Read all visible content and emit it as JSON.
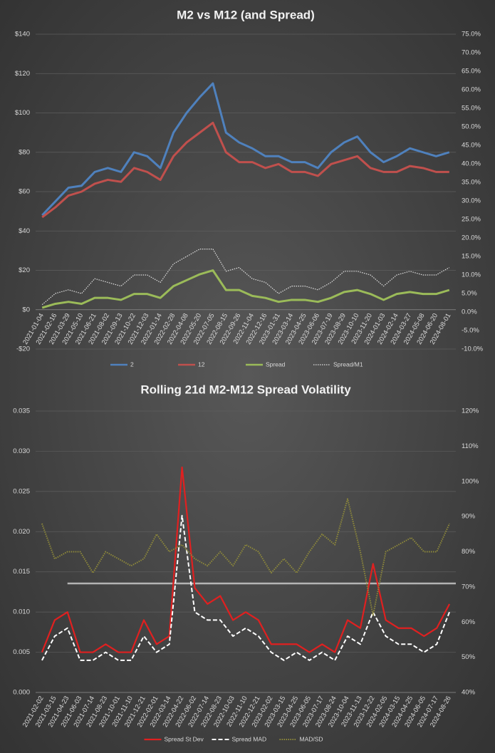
{
  "chart_data": [
    {
      "type": "line",
      "title": "M2 vs M12 (and Spread)",
      "grid": true,
      "categories": [
        "2021-01-04",
        "2021-02-16",
        "2021-03-29",
        "2021-05-10",
        "2021-06-21",
        "2021-08-02",
        "2021-09-13",
        "2021-10-22",
        "2021-12-03",
        "2022-01-14",
        "2022-02-28",
        "2022-04-08",
        "2022-05-20",
        "2022-07-05",
        "2022-08-15",
        "2022-09-26",
        "2022-11-04",
        "2022-12-16",
        "2023-01-31",
        "2023-03-14",
        "2023-04-25",
        "2023-06-06",
        "2023-07-19",
        "2023-08-29",
        "2023-10-10",
        "2023-11-20",
        "2024-01-03",
        "2024-02-14",
        "2024-03-27",
        "2024-05-08",
        "2024-06-20",
        "2024-08-01"
      ],
      "ylim": [
        -20,
        140
      ],
      "yticks": [
        {
          "value": -20,
          "label": "-$20"
        },
        {
          "value": 0,
          "label": "$0"
        },
        {
          "value": 20,
          "label": "$20"
        },
        {
          "value": 40,
          "label": "$40"
        },
        {
          "value": 60,
          "label": "$60"
        },
        {
          "value": 80,
          "label": "$80"
        },
        {
          "value": 100,
          "label": "$100"
        },
        {
          "value": 120,
          "label": "$120"
        },
        {
          "value": 140,
          "label": "$140"
        }
      ],
      "y2lim": [
        -10,
        75
      ],
      "y2ticks": [
        {
          "value": -10,
          "label": "-10.0%"
        },
        {
          "value": -5,
          "label": "-5.0%"
        },
        {
          "value": 0,
          "label": "0.0%"
        },
        {
          "value": 5,
          "label": "5.0%"
        },
        {
          "value": 10,
          "label": "10.0%"
        },
        {
          "value": 15,
          "label": "15.0%"
        },
        {
          "value": 20,
          "label": "20.0%"
        },
        {
          "value": 25,
          "label": "25.0%"
        },
        {
          "value": 30,
          "label": "30.0%"
        },
        {
          "value": 35,
          "label": "35.0%"
        },
        {
          "value": 40,
          "label": "40.0%"
        },
        {
          "value": 45,
          "label": "45.0%"
        },
        {
          "value": 50,
          "label": "50.0%"
        },
        {
          "value": 55,
          "label": "55.0%"
        },
        {
          "value": 60,
          "label": "60.0%"
        },
        {
          "value": 65,
          "label": "65.0%"
        },
        {
          "value": 70,
          "label": "70.0%"
        },
        {
          "value": 75,
          "label": "75.0%"
        }
      ],
      "series": [
        {
          "name": "2",
          "color": "#4f81bd",
          "width": 3,
          "values": [
            48,
            55,
            62,
            63,
            70,
            72,
            70,
            80,
            78,
            72,
            90,
            100,
            108,
            115,
            90,
            85,
            82,
            78,
            78,
            75,
            75,
            72,
            80,
            85,
            88,
            80,
            75,
            78,
            82,
            80,
            78,
            80
          ]
        },
        {
          "name": "12",
          "color": "#c0504d",
          "width": 3,
          "values": [
            47,
            52,
            58,
            60,
            64,
            66,
            65,
            72,
            70,
            66,
            78,
            85,
            90,
            95,
            80,
            75,
            75,
            72,
            74,
            70,
            70,
            68,
            74,
            76,
            78,
            72,
            70,
            70,
            73,
            72,
            70,
            70
          ]
        },
        {
          "name": "Spread",
          "color": "#9bbb59",
          "width": 3,
          "values": [
            1,
            3,
            4,
            3,
            6,
            6,
            5,
            8,
            8,
            6,
            12,
            15,
            18,
            20,
            10,
            10,
            7,
            6,
            4,
            5,
            5,
            4,
            6,
            9,
            10,
            8,
            5,
            8,
            9,
            8,
            8,
            10
          ]
        },
        {
          "name": "Spread/M1",
          "color": "#e0e0e0",
          "width": 1.2,
          "dash": "dotted",
          "axis": "y2",
          "values": [
            2,
            5,
            6,
            5,
            9,
            8,
            7,
            10,
            10,
            8,
            13,
            15,
            17,
            17,
            11,
            12,
            9,
            8,
            5,
            7,
            7,
            6,
            8,
            11,
            11,
            10,
            7,
            10,
            11,
            10,
            10,
            12
          ]
        }
      ]
    },
    {
      "type": "line",
      "title": "Rolling 21d M2-M12 Spread Volatility",
      "grid": true,
      "categories": [
        "2021-02-02",
        "2021-03-15",
        "2021-04-23",
        "2021-06-03",
        "2021-07-14",
        "2021-08-23",
        "2021-10-01",
        "2021-11-10",
        "2021-12-21",
        "2022-02-01",
        "2022-03-14",
        "2022-04-22",
        "2022-06-02",
        "2022-07-14",
        "2022-08-23",
        "2022-10-03",
        "2022-11-10",
        "2022-12-21",
        "2023-02-02",
        "2023-03-15",
        "2023-04-25",
        "2023-06-05",
        "2023-07-17",
        "2023-08-24",
        "2023-10-04",
        "2023-11-13",
        "2023-12-22",
        "2024-02-05",
        "2024-03-15",
        "2024-04-25",
        "2024-06-05",
        "2024-07-17",
        "2024-08-26"
      ],
      "ylim": [
        0,
        0.035
      ],
      "yticks": [
        {
          "value": 0,
          "label": "0.000"
        },
        0.005,
        {
          "value": 0.01,
          "label": "0.010"
        },
        0.015,
        {
          "value": 0.02,
          "label": "0.020"
        },
        0.025,
        {
          "value": 0.03,
          "label": "0.030"
        },
        0.035
      ],
      "y2lim": [
        40,
        120
      ],
      "y2ticks": [
        {
          "value": 40,
          "label": "40%"
        },
        {
          "value": 50,
          "label": "50%"
        },
        {
          "value": 60,
          "label": "60%"
        },
        {
          "value": 70,
          "label": "70%"
        },
        {
          "value": 80,
          "label": "80%"
        },
        {
          "value": 90,
          "label": "90%"
        },
        {
          "value": 100,
          "label": "100%"
        },
        {
          "value": 110,
          "label": "110%"
        },
        {
          "value": 120,
          "label": "120%"
        }
      ],
      "hline": {
        "value": 71,
        "axis": "y2",
        "color": "#d0d0d0"
      },
      "series": [
        {
          "name": "Spread St Dev",
          "color": "#e02020",
          "width": 2.2,
          "values": [
            0.005,
            0.009,
            0.01,
            0.005,
            0.005,
            0.006,
            0.005,
            0.005,
            0.009,
            0.006,
            0.007,
            0.028,
            0.013,
            0.011,
            0.012,
            0.009,
            0.01,
            0.009,
            0.006,
            0.006,
            0.006,
            0.005,
            0.006,
            0.005,
            0.009,
            0.008,
            0.016,
            0.009,
            0.008,
            0.008,
            0.007,
            0.008,
            0.011
          ]
        },
        {
          "name": "Spread MAD",
          "color": "#ffffff",
          "width": 2,
          "dash": "dashed",
          "values": [
            0.004,
            0.007,
            0.008,
            0.004,
            0.004,
            0.005,
            0.004,
            0.004,
            0.007,
            0.005,
            0.006,
            0.022,
            0.01,
            0.009,
            0.009,
            0.007,
            0.008,
            0.007,
            0.005,
            0.004,
            0.005,
            0.004,
            0.005,
            0.004,
            0.007,
            0.006,
            0.01,
            0.007,
            0.006,
            0.006,
            0.005,
            0.006,
            0.01
          ]
        },
        {
          "name": "MAD/SD",
          "color": "#8f8a3a",
          "width": 2,
          "dash": "dotted",
          "axis": "y2",
          "values": [
            88,
            78,
            80,
            80,
            74,
            80,
            78,
            76,
            78,
            85,
            80,
            82,
            78,
            76,
            80,
            76,
            82,
            80,
            74,
            78,
            74,
            80,
            85,
            82,
            95,
            80,
            62,
            80,
            82,
            84,
            80,
            80,
            88
          ]
        }
      ]
    }
  ]
}
